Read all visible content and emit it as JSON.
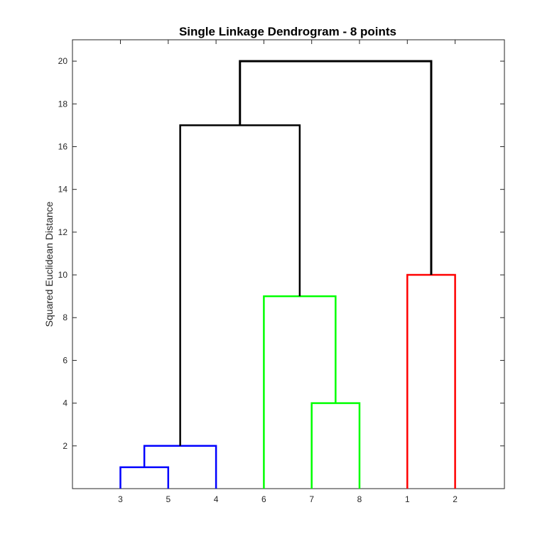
{
  "chart_data": {
    "type": "dendrogram",
    "title": "Single Linkage Dendrogram - 8 points",
    "xlabel": "",
    "ylabel": "Squared Euclidean Distance",
    "ylim": [
      0,
      21
    ],
    "yticks": [
      2,
      4,
      6,
      8,
      10,
      12,
      14,
      16,
      18,
      20
    ],
    "leaf_order": [
      "3",
      "5",
      "4",
      "6",
      "7",
      "8",
      "1",
      "2"
    ],
    "grid": false,
    "merges": [
      {
        "left": "3",
        "right": "5",
        "height": 1,
        "color": "#0000ff"
      },
      {
        "left": "(3,5)",
        "right": "4",
        "height": 2,
        "color": "#0000ff"
      },
      {
        "left": "7",
        "right": "8",
        "height": 4,
        "color": "#00ff00"
      },
      {
        "left": "6",
        "right": "(7,8)",
        "height": 9,
        "color": "#00ff00"
      },
      {
        "left": "1",
        "right": "2",
        "height": 10,
        "color": "#ff0000"
      },
      {
        "left": "(3,5,4)",
        "right": "(6,7,8)",
        "height": 17,
        "color": "#000000"
      },
      {
        "left": "(3,5,4,6,7,8)",
        "right": "(1,2)",
        "height": 20,
        "color": "#000000"
      }
    ]
  }
}
